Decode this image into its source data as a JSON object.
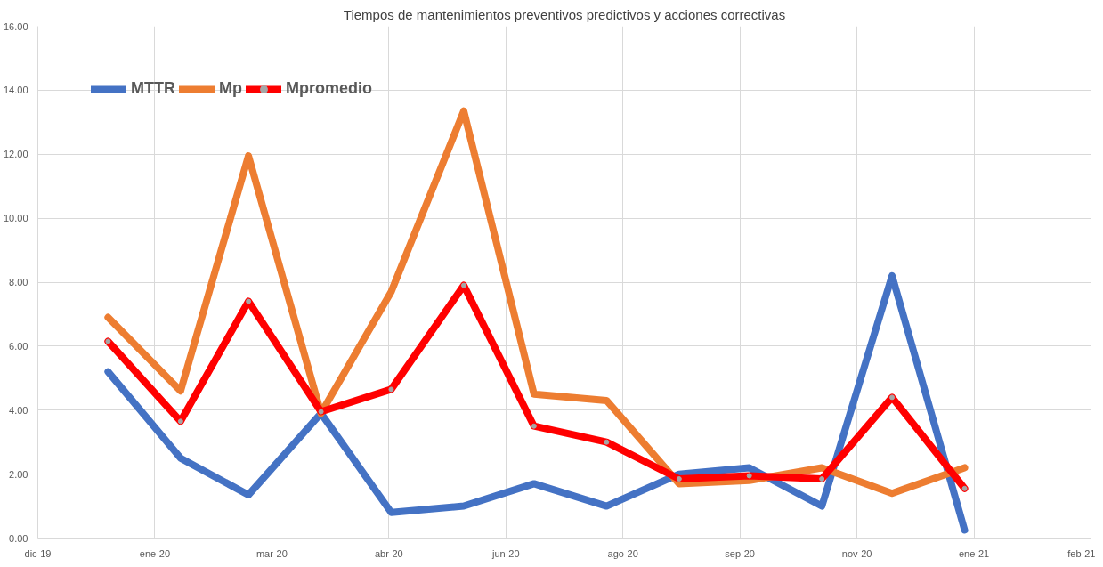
{
  "chart_data": {
    "type": "line",
    "title": "Tiempos de mantenimientos preventivos predictivos y acciones correctivas",
    "x": [
      "2019-12-31",
      "2020-01-31",
      "2020-02-29",
      "2020-03-31",
      "2020-04-30",
      "2020-05-31",
      "2020-06-30",
      "2020-07-31",
      "2020-08-31",
      "2020-09-30",
      "2020-10-31",
      "2020-11-30",
      "2020-12-31"
    ],
    "series": [
      {
        "name": "MTTR",
        "color": "#4472c4",
        "marker": "none",
        "values": [
          5.2,
          2.5,
          1.35,
          3.9,
          0.8,
          1.0,
          1.7,
          1.0,
          2.0,
          2.2,
          1.0,
          8.2,
          0.25
        ]
      },
      {
        "name": "Mp",
        "color": "#ed7d31",
        "marker": "none",
        "values": [
          6.9,
          4.6,
          11.95,
          3.9,
          7.7,
          13.35,
          4.5,
          4.3,
          1.7,
          1.8,
          2.2,
          1.4,
          2.2
        ]
      },
      {
        "name": "Mpromedio",
        "color": "#ff0000",
        "marker": "circle",
        "values": [
          6.15,
          3.65,
          7.4,
          3.95,
          4.65,
          7.9,
          3.5,
          3.0,
          1.85,
          1.95,
          1.85,
          4.4,
          1.55
        ]
      }
    ],
    "xlim": [
      "2019-12-01",
      "2021-02-23"
    ],
    "xticks": [
      {
        "value": "2019-12-01",
        "label": "dic-19"
      },
      {
        "value": "2020-01-20",
        "label": "ene-20"
      },
      {
        "value": "2020-03-10",
        "label": "mar-20"
      },
      {
        "value": "2020-04-29",
        "label": "abr-20"
      },
      {
        "value": "2020-06-18",
        "label": "jun-20"
      },
      {
        "value": "2020-08-07",
        "label": "ago-20"
      },
      {
        "value": "2020-09-26",
        "label": "sep-20"
      },
      {
        "value": "2020-11-15",
        "label": "nov-20"
      },
      {
        "value": "2021-01-04",
        "label": "ene-21"
      },
      {
        "value": "2021-02-23",
        "label": "feb-21"
      }
    ],
    "ylim": [
      0,
      16
    ],
    "yticks": [
      {
        "value": 0,
        "label": "0.00"
      },
      {
        "value": 2,
        "label": "2.00"
      },
      {
        "value": 4,
        "label": "4.00"
      },
      {
        "value": 6,
        "label": "6.00"
      },
      {
        "value": 8,
        "label": "8.00"
      },
      {
        "value": 10,
        "label": "10.00"
      },
      {
        "value": 12,
        "label": "12.00"
      },
      {
        "value": 14,
        "label": "14.00"
      },
      {
        "value": 16,
        "label": "16.00"
      }
    ],
    "grid": true,
    "legend": "top left"
  }
}
